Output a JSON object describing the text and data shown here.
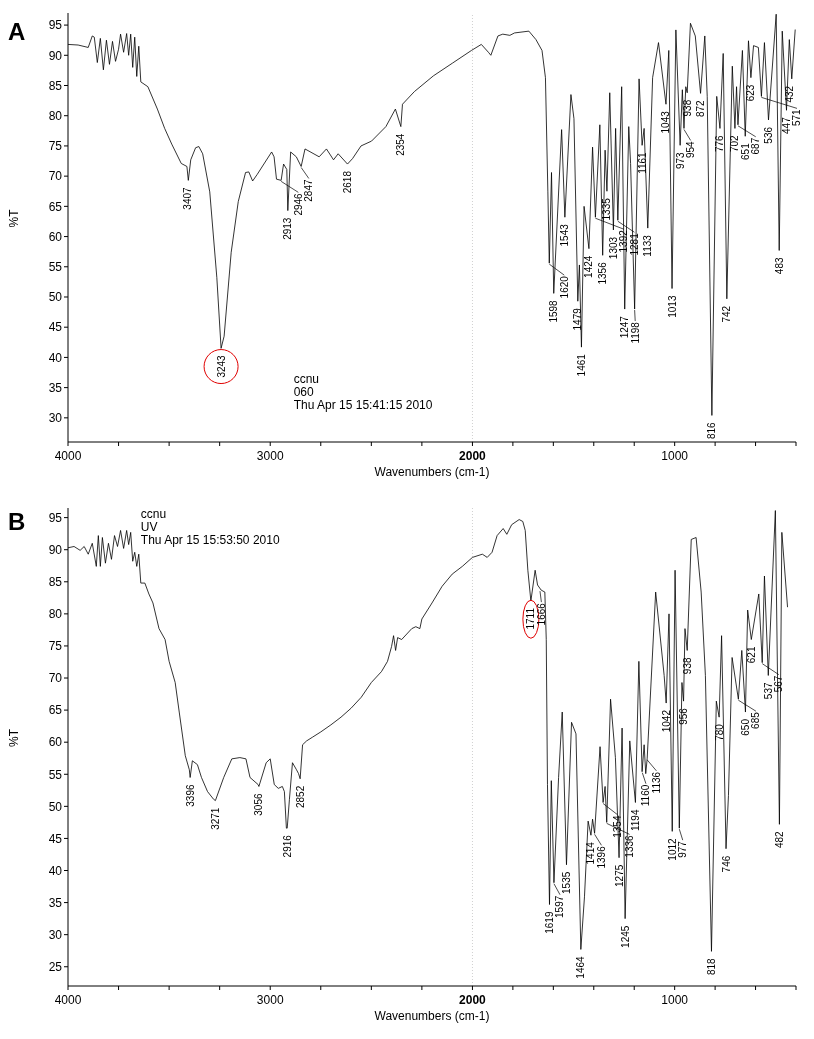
{
  "chart_data": [
    {
      "type": "line",
      "title": "A",
      "xlabel": "Wavenumbers (cm-1)",
      "ylabel": "%T",
      "xlim": [
        4000,
        400
      ],
      "ylim": [
        26,
        97
      ],
      "xticks": [
        4000,
        {
          "value": 3750,
          "label": null
        },
        {
          "value": 3500,
          "label": null
        },
        {
          "value": 3250,
          "label": null
        },
        3000,
        {
          "value": 2750,
          "label": null
        },
        {
          "value": 2500,
          "label": null
        },
        {
          "value": 2250,
          "label": null
        },
        2000,
        {
          "value": 1800,
          "label": null
        },
        {
          "value": 1600,
          "label": null
        },
        {
          "value": 1400,
          "label": null
        },
        {
          "value": 1200,
          "label": null
        },
        1000,
        {
          "value": 800,
          "label": null
        },
        {
          "value": 600,
          "label": null
        },
        {
          "value": 400,
          "label": null
        }
      ],
      "yticks": [
        30,
        35,
        40,
        45,
        50,
        55,
        60,
        65,
        70,
        75,
        80,
        85,
        90,
        95
      ],
      "marker": "none",
      "line_style": "solid",
      "ref_lines": [
        {
          "axis": "x",
          "value": 2000,
          "color": "#d0d0d0",
          "line_style": "dotted"
        }
      ],
      "series": [
        {
          "color": "#000000",
          "x": [
            4000,
            3950,
            3900,
            3880,
            3870,
            3855,
            3840,
            3825,
            3810,
            3795,
            3780,
            3765,
            3750,
            3740,
            3725,
            3710,
            3700,
            3690,
            3680,
            3670,
            3660,
            3650,
            3640,
            3605,
            3558,
            3522,
            3487,
            3440,
            3412,
            3405,
            3393,
            3369,
            3353,
            3334,
            3299,
            3264,
            3243,
            3228,
            3193,
            3158,
            3122,
            3106,
            3087,
            3064,
            2993,
            2981,
            2969,
            2946,
            2934,
            2918,
            2913,
            2899,
            2871,
            2847,
            2828,
            2758,
            2722,
            2687,
            2664,
            2618,
            2593,
            2551,
            2499,
            2428,
            2381,
            2354,
            2346,
            2287,
            2193,
            2099,
            2005,
            1956,
            1921,
            1909,
            1874,
            1850,
            1815,
            1792,
            1721,
            1686,
            1656,
            1639,
            1627,
            1620,
            1609,
            1598,
            1559,
            1543,
            1513,
            1498,
            1479,
            1471,
            1461,
            1448,
            1424,
            1406,
            1392,
            1370,
            1356,
            1344,
            1335,
            1321,
            1303,
            1292,
            1281,
            1262,
            1247,
            1227,
            1218,
            1198,
            1176,
            1161,
            1151,
            1133,
            1109,
            1080,
            1043,
            1029,
            1013,
            994,
            973,
            962,
            954,
            945,
            938,
            922,
            898,
            872,
            851,
            839,
            816,
            792,
            776,
            760,
            742,
            715,
            702,
            694,
            687,
            665,
            651,
            635,
            623,
            610,
            586,
            571,
            556,
            536,
            498,
            483,
            468,
            447,
            433,
            421,
            404
          ],
          "values": [
            91.8,
            91.7,
            91.3,
            93.2,
            93,
            88.8,
            92.8,
            87.6,
            92.5,
            88.5,
            92.3,
            89,
            91,
            93.5,
            90.5,
            93.6,
            90,
            93.5,
            88,
            93,
            86.5,
            91.5,
            85.6,
            84.8,
            81.1,
            77.9,
            75.3,
            72.1,
            71.6,
            69.3,
            72.7,
            74.7,
            74.9,
            73.7,
            67.4,
            53.2,
            41.5,
            43.5,
            57.4,
            65.8,
            70.6,
            70.7,
            69.2,
            70.3,
            74,
            73.2,
            69.5,
            69.3,
            72,
            71.1,
            64.3,
            74,
            73.2,
            71.6,
            74.5,
            73.2,
            74.5,
            72.7,
            73.7,
            72,
            72.9,
            75,
            75.8,
            78.2,
            81.1,
            78.2,
            81.9,
            84,
            86.6,
            88.7,
            90.8,
            91.8,
            90.5,
            90,
            93.2,
            93.5,
            93.3,
            93.7,
            94,
            92.6,
            90.8,
            86.3,
            67.4,
            55.6,
            70.6,
            50.6,
            77.7,
            63.2,
            83.5,
            79.5,
            49.3,
            55.3,
            41.7,
            65,
            58,
            74.8,
            63.2,
            78.5,
            56.9,
            74.3,
            67.5,
            83.8,
            61.1,
            77.9,
            62.7,
            84.8,
            48,
            78.2,
            72.1,
            48,
            86.1,
            75.1,
            77.9,
            61.4,
            86.3,
            92.1,
            81.9,
            90.8,
            51.4,
            94.2,
            75.1,
            84.3,
            77.9,
            84.8,
            83.8,
            95.3,
            93.2,
            83.7,
            93.2,
            83.2,
            30.4,
            83.2,
            77.9,
            90.3,
            49.7,
            88.2,
            77.9,
            84.8,
            78.5,
            90.8,
            76.6,
            92.4,
            86.3,
            91.6,
            91.3,
            83.2,
            92.1,
            79.3,
            96.8,
            57.7,
            94,
            80.9,
            92.6,
            86.1,
            94.2
          ]
        }
      ],
      "annotations": [
        {
          "text": "3243",
          "x": 3243,
          "y": 41.5
        },
        {
          "text": "3407",
          "x": 3407,
          "y": 69.3
        },
        {
          "text": "2946",
          "x": 2946,
          "y": 69.3
        },
        {
          "text": "2913",
          "x": 2913,
          "y": 64.3
        },
        {
          "text": "2847",
          "x": 2847,
          "y": 71.6
        },
        {
          "text": "2618",
          "x": 2618,
          "y": 72
        },
        {
          "text": "2354",
          "x": 2354,
          "y": 78.2
        },
        {
          "text": "1620",
          "x": 1620,
          "y": 55.6
        },
        {
          "text": "1598",
          "x": 1598,
          "y": 50.6
        },
        {
          "text": "1543",
          "x": 1543,
          "y": 63.2
        },
        {
          "text": "1479",
          "x": 1479,
          "y": 49.3
        },
        {
          "text": "1461",
          "x": 1461,
          "y": 41.7
        },
        {
          "text": "1424",
          "x": 1424,
          "y": 58
        },
        {
          "text": "1392",
          "x": 1392,
          "y": 63.2
        },
        {
          "text": "1356",
          "x": 1356,
          "y": 56.9
        },
        {
          "text": "1335",
          "x": 1335,
          "y": 67.5
        },
        {
          "text": "1303",
          "x": 1303,
          "y": 61.1
        },
        {
          "text": "1281",
          "x": 1281,
          "y": 62.7
        },
        {
          "text": "1247",
          "x": 1247,
          "y": 48
        },
        {
          "text": "1198",
          "x": 1198,
          "y": 48
        },
        {
          "text": "1161",
          "x": 1161,
          "y": 75.1
        },
        {
          "text": "1133",
          "x": 1133,
          "y": 61.4
        },
        {
          "text": "1043",
          "x": 1043,
          "y": 81.9
        },
        {
          "text": "1013",
          "x": 1013,
          "y": 51.4
        },
        {
          "text": "973",
          "x": 973,
          "y": 75.1
        },
        {
          "text": "954",
          "x": 954,
          "y": 77.9
        },
        {
          "text": "938",
          "x": 938,
          "y": 83.8
        },
        {
          "text": "872",
          "x": 872,
          "y": 83.7
        },
        {
          "text": "816",
          "x": 816,
          "y": 30.4
        },
        {
          "text": "776",
          "x": 776,
          "y": 77.9
        },
        {
          "text": "742",
          "x": 742,
          "y": 49.7
        },
        {
          "text": "702",
          "x": 702,
          "y": 77.9
        },
        {
          "text": "687",
          "x": 687,
          "y": 78.5
        },
        {
          "text": "651",
          "x": 651,
          "y": 76.6
        },
        {
          "text": "623",
          "x": 623,
          "y": 86.3
        },
        {
          "text": "571",
          "x": 571,
          "y": 83.2
        },
        {
          "text": "536",
          "x": 536,
          "y": 79.3
        },
        {
          "text": "483",
          "x": 483,
          "y": 57.7
        },
        {
          "text": "447",
          "x": 447,
          "y": 80.9
        },
        {
          "text": "432",
          "x": 432,
          "y": 86.1
        },
        "ccnu",
        "060",
        "Thu Apr 15 15:41:15 2010"
      ]
    },
    {
      "type": "line",
      "title": "B",
      "xlabel": "Wavenumbers (cm-1)",
      "ylabel": "%T",
      "xlim": [
        4000,
        400
      ],
      "ylim": [
        22,
        96.5
      ],
      "xticks": [
        4000,
        {
          "value": 3750,
          "label": null
        },
        {
          "value": 3500,
          "label": null
        },
        {
          "value": 3250,
          "label": null
        },
        3000,
        {
          "value": 2750,
          "label": null
        },
        {
          "value": 2500,
          "label": null
        },
        {
          "value": 2250,
          "label": null
        },
        2000,
        {
          "value": 1800,
          "label": null
        },
        {
          "value": 1600,
          "label": null
        },
        {
          "value": 1400,
          "label": null
        },
        {
          "value": 1200,
          "label": null
        },
        1000,
        {
          "value": 800,
          "label": null
        },
        {
          "value": 600,
          "label": null
        },
        {
          "value": 400,
          "label": null
        }
      ],
      "yticks": [
        25,
        30,
        35,
        40,
        45,
        50,
        55,
        60,
        65,
        70,
        75,
        80,
        85,
        90,
        95
      ],
      "marker": "none",
      "line_style": "solid",
      "ref_lines": [
        {
          "axis": "x",
          "value": 2000,
          "color": "#d0d0d0",
          "line_style": "dotted"
        }
      ],
      "series": [
        {
          "color": "#000000",
          "x": [
            4000,
            3970,
            3940,
            3920,
            3900,
            3880,
            3860,
            3850,
            3840,
            3830,
            3815,
            3800,
            3785,
            3770,
            3755,
            3740,
            3725,
            3710,
            3700,
            3690,
            3680,
            3670,
            3660,
            3650,
            3640,
            3620,
            3600,
            3580,
            3550,
            3520,
            3500,
            3470,
            3450,
            3420,
            3400,
            3396,
            3385,
            3360,
            3340,
            3310,
            3280,
            3271,
            3230,
            3190,
            3150,
            3120,
            3100,
            3060,
            3056,
            3020,
            3000,
            2980,
            2960,
            2940,
            2930,
            2920,
            2916,
            2905,
            2890,
            2870,
            2860,
            2852,
            2840,
            2820,
            2790,
            2750,
            2700,
            2650,
            2600,
            2550,
            2500,
            2450,
            2420,
            2400,
            2390,
            2380,
            2370,
            2350,
            2300,
            2280,
            2260,
            2250,
            2200,
            2150,
            2100,
            2050,
            2000,
            1951,
            1927,
            1903,
            1878,
            1848,
            1830,
            1806,
            1769,
            1751,
            1739,
            1726,
            1711,
            1690,
            1678,
            1660,
            1642,
            1635,
            1629,
            1619,
            1610,
            1597,
            1574,
            1556,
            1535,
            1510,
            1488,
            1464,
            1446,
            1428,
            1414,
            1406,
            1396,
            1369,
            1354,
            1344,
            1336,
            1317,
            1293,
            1275,
            1260,
            1245,
            1222,
            1194,
            1177,
            1161,
            1151,
            1143,
            1136,
            1094,
            1052,
            1042,
            1028,
            1012,
            998,
            977,
            964,
            956,
            949,
            938,
            918,
            894,
            869,
            848,
            818,
            794,
            780,
            768,
            746,
            734,
            716,
            685,
            668,
            650,
            639,
            621,
            584,
            567,
            556,
            537,
            502,
            482,
            470,
            442
          ],
          "values": [
            90.3,
            90.5,
            89.9,
            90.5,
            89.3,
            91,
            87.4,
            92.2,
            87.4,
            91.9,
            87.9,
            91,
            88.5,
            92.2,
            90.5,
            93,
            90.2,
            93,
            90.8,
            92.7,
            88.2,
            89.6,
            87.4,
            89.3,
            84.8,
            84.8,
            83.1,
            81.7,
            77.7,
            76,
            72.6,
            69.3,
            64.7,
            57.9,
            55.7,
            54.5,
            57.1,
            56.5,
            54.5,
            52.3,
            51.1,
            50.9,
            54.5,
            57.4,
            57.6,
            57.4,
            54.5,
            53.4,
            53.1,
            56.8,
            57.4,
            53.4,
            52.8,
            53.1,
            52.3,
            46.6,
            46.6,
            51.1,
            56.8,
            55.7,
            55.1,
            54.3,
            59.6,
            60.2,
            60.8,
            61.6,
            62.7,
            63.9,
            65.3,
            67,
            69.3,
            71,
            72.6,
            74.9,
            76.6,
            74.3,
            76.3,
            76,
            77.7,
            78,
            77.7,
            79.2,
            81.7,
            84.3,
            86.2,
            87.4,
            88.8,
            89.3,
            88.8,
            89.6,
            92.2,
            93.3,
            92.4,
            93.9,
            94.7,
            94.4,
            93,
            86.8,
            82,
            86.8,
            84.5,
            83.7,
            83.4,
            76,
            53.4,
            34.7,
            54,
            38.1,
            54.5,
            64.7,
            40.9,
            63.1,
            61.3,
            27.7,
            35.9,
            47.7,
            45.5,
            48,
            45.8,
            59.3,
            50.6,
            53.1,
            47.5,
            66.7,
            57.6,
            42,
            62.2,
            32.5,
            60.2,
            50.6,
            72.6,
            55.4,
            59.6,
            55.1,
            57.4,
            83.4,
            70.4,
            66.1,
            80,
            46.1,
            86.8,
            46.6,
            69.3,
            66.4,
            77.7,
            74.3,
            91.6,
            91.9,
            83.4,
            70.4,
            27.4,
            66.4,
            63.9,
            76.6,
            43.4,
            51.7,
            73.2,
            66.7,
            74.3,
            64.7,
            80.6,
            76,
            83.1,
            72.4,
            85.9,
            70.4,
            96.1,
            47.2,
            92.7,
            81.1
          ]
        }
      ],
      "annotations": [
        {
          "text": "1711",
          "x": 1711,
          "y": 82
        },
        {
          "text": "3396",
          "x": 3396,
          "y": 54.5
        },
        {
          "text": "3271",
          "x": 3271,
          "y": 50.9
        },
        {
          "text": "3056",
          "x": 3056,
          "y": 53.1
        },
        {
          "text": "2916",
          "x": 2916,
          "y": 46.6
        },
        {
          "text": "2852",
          "x": 2852,
          "y": 54.3
        },
        {
          "text": "1666",
          "x": 1666,
          "y": 83.7
        },
        {
          "text": "1619",
          "x": 1619,
          "y": 34.7
        },
        {
          "text": "1597",
          "x": 1597,
          "y": 38.1
        },
        {
          "text": "1535",
          "x": 1535,
          "y": 40.9
        },
        {
          "text": "1464",
          "x": 1464,
          "y": 27.7
        },
        {
          "text": "1414",
          "x": 1414,
          "y": 45.5
        },
        {
          "text": "1396",
          "x": 1396,
          "y": 45.8
        },
        {
          "text": "1354",
          "x": 1354,
          "y": 50.6
        },
        {
          "text": "1336",
          "x": 1336,
          "y": 47.5
        },
        {
          "text": "1275",
          "x": 1275,
          "y": 42
        },
        {
          "text": "1245",
          "x": 1245,
          "y": 32.5
        },
        {
          "text": "1194",
          "x": 1194,
          "y": 50.6
        },
        {
          "text": "1160",
          "x": 1160,
          "y": 55.4
        },
        {
          "text": "1136",
          "x": 1136,
          "y": 57.4
        },
        {
          "text": "1042",
          "x": 1042,
          "y": 66.1
        },
        {
          "text": "1012",
          "x": 1012,
          "y": 46.1
        },
        {
          "text": "977",
          "x": 977,
          "y": 46.6
        },
        {
          "text": "956",
          "x": 956,
          "y": 66.4
        },
        {
          "text": "938",
          "x": 938,
          "y": 74.3
        },
        {
          "text": "818",
          "x": 818,
          "y": 27.4
        },
        {
          "text": "780",
          "x": 780,
          "y": 63.9
        },
        {
          "text": "746",
          "x": 746,
          "y": 43.4
        },
        {
          "text": "685",
          "x": 685,
          "y": 66.7
        },
        {
          "text": "650",
          "x": 650,
          "y": 64.7
        },
        {
          "text": "621",
          "x": 621,
          "y": 76
        },
        {
          "text": "567",
          "x": 567,
          "y": 72.4
        },
        {
          "text": "537",
          "x": 537,
          "y": 70.4
        },
        {
          "text": "482",
          "x": 482,
          "y": 47.2
        },
        "ccnu",
        "UV",
        "Thu Apr 15 15:53:50 2010"
      ]
    }
  ]
}
